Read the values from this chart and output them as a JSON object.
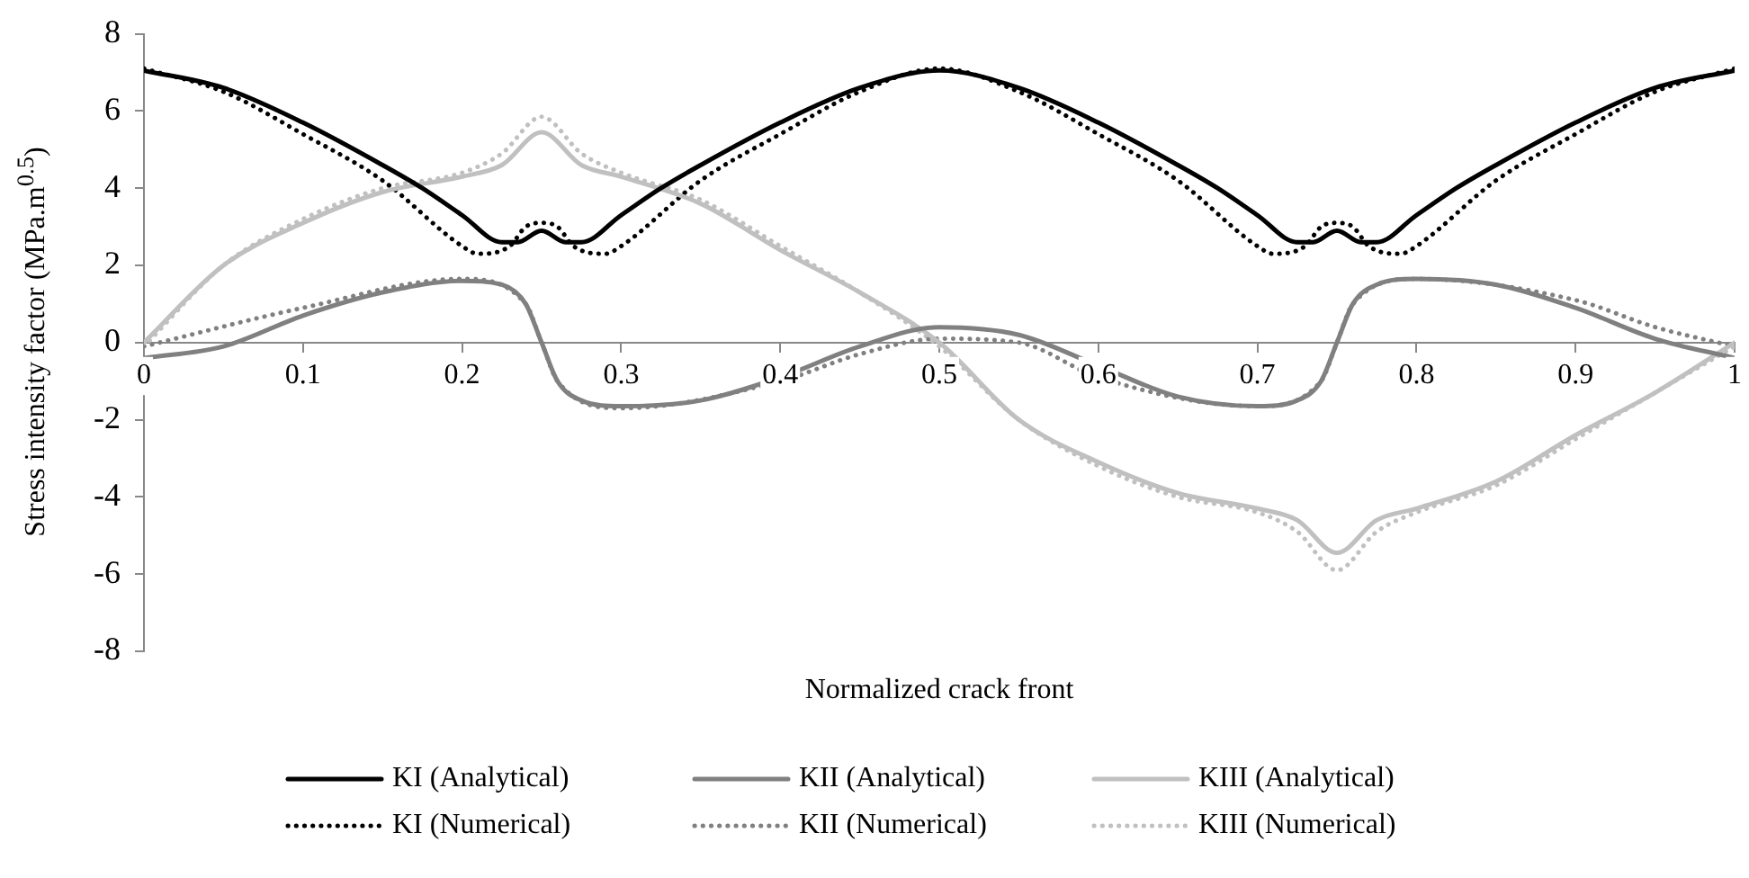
{
  "chart_data": {
    "type": "line",
    "xlabel": "Normalized crack front",
    "ylabel": "Stress intensity factor (MPa.m$^{0.5}$)",
    "xlim": [
      0,
      1
    ],
    "xticks": [
      0,
      0.1,
      0.2,
      0.3,
      0.4,
      0.5,
      0.6,
      0.7,
      0.8,
      0.9,
      1
    ],
    "ylim": [
      -8,
      8
    ],
    "yticks": [
      -8,
      -6,
      -4,
      -2,
      0,
      2,
      4,
      6,
      8
    ],
    "grid": false,
    "legend": "bottom",
    "marker": "none",
    "series": [
      {
        "name": "KI (Analytical)",
        "color": "#000000",
        "line_style": "solid",
        "x": [
          0,
          0.05,
          0.1,
          0.15,
          0.175,
          0.2,
          0.225,
          0.235,
          0.25,
          0.265,
          0.275,
          0.3,
          0.325,
          0.35,
          0.4,
          0.45,
          0.5,
          0.55,
          0.6,
          0.65,
          0.675,
          0.7,
          0.725,
          0.735,
          0.75,
          0.765,
          0.775,
          0.8,
          0.825,
          0.85,
          0.9,
          0.95,
          1
        ],
        "values": [
          7.05,
          6.6,
          5.7,
          4.6,
          4.0,
          3.3,
          2.6,
          2.6,
          2.9,
          2.6,
          2.6,
          3.3,
          4.0,
          4.6,
          5.7,
          6.6,
          7.05,
          6.6,
          5.7,
          4.6,
          4.0,
          3.3,
          2.6,
          2.6,
          2.9,
          2.6,
          2.6,
          3.3,
          4.0,
          4.6,
          5.7,
          6.6,
          7.05
        ]
      },
      {
        "name": "KII (Analytical)",
        "color": "#808080",
        "line_style": "solid",
        "x": [
          0,
          0.05,
          0.1,
          0.15,
          0.2,
          0.225,
          0.24,
          0.25,
          0.26,
          0.275,
          0.3,
          0.35,
          0.4,
          0.45,
          0.5,
          0.55,
          0.6,
          0.65,
          0.7,
          0.725,
          0.74,
          0.75,
          0.76,
          0.775,
          0.8,
          0.85,
          0.9,
          0.95,
          1
        ],
        "values": [
          -0.4,
          -0.1,
          0.7,
          1.3,
          1.6,
          1.5,
          1.0,
          0.0,
          -1.0,
          -1.5,
          -1.65,
          -1.5,
          -0.9,
          -0.1,
          0.4,
          0.2,
          -0.6,
          -1.4,
          -1.65,
          -1.5,
          -1.0,
          0.0,
          1.0,
          1.5,
          1.65,
          1.5,
          0.9,
          0.1,
          -0.4
        ]
      },
      {
        "name": "KIII (Analytical)",
        "color": "#c0c0c0",
        "line_style": "solid",
        "x": [
          0,
          0.05,
          0.1,
          0.15,
          0.2,
          0.225,
          0.25,
          0.275,
          0.3,
          0.35,
          0.4,
          0.45,
          0.5,
          0.55,
          0.6,
          0.65,
          0.7,
          0.725,
          0.75,
          0.775,
          0.8,
          0.85,
          0.9,
          0.95,
          1
        ],
        "values": [
          0,
          2.0,
          3.1,
          3.9,
          4.3,
          4.6,
          5.45,
          4.6,
          4.3,
          3.6,
          2.4,
          1.3,
          0,
          -2.0,
          -3.1,
          -3.9,
          -4.3,
          -4.6,
          -5.45,
          -4.6,
          -4.3,
          -3.6,
          -2.4,
          -1.3,
          0
        ]
      },
      {
        "name": "KI (Numerical)",
        "color": "#000000",
        "line_style": "dotted",
        "x": [
          0,
          0.05,
          0.1,
          0.15,
          0.2,
          0.21,
          0.23,
          0.24,
          0.25,
          0.26,
          0.27,
          0.29,
          0.3,
          0.35,
          0.4,
          0.45,
          0.5,
          0.55,
          0.6,
          0.65,
          0.7,
          0.71,
          0.73,
          0.74,
          0.75,
          0.76,
          0.77,
          0.79,
          0.8,
          0.85,
          0.9,
          0.95,
          1
        ],
        "values": [
          7.1,
          6.5,
          5.4,
          4.2,
          2.5,
          2.3,
          2.5,
          3.0,
          3.1,
          3.0,
          2.5,
          2.3,
          2.5,
          4.2,
          5.4,
          6.5,
          7.1,
          6.5,
          5.4,
          4.2,
          2.5,
          2.3,
          2.5,
          3.0,
          3.1,
          3.0,
          2.5,
          2.3,
          2.5,
          4.2,
          5.4,
          6.5,
          7.1
        ]
      },
      {
        "name": "KII (Numerical)",
        "color": "#808080",
        "line_style": "dotted",
        "x": [
          0,
          0.1,
          0.2,
          0.24,
          0.25,
          0.26,
          0.3,
          0.4,
          0.45,
          0.5,
          0.55,
          0.6,
          0.7,
          0.74,
          0.75,
          0.76,
          0.8,
          0.9,
          0.95,
          1
        ],
        "values": [
          -0.1,
          0.9,
          1.65,
          1.0,
          0,
          -1.0,
          -1.7,
          -1.0,
          -0.3,
          0.1,
          0.0,
          -0.9,
          -1.65,
          -1.0,
          0,
          1.0,
          1.65,
          1.1,
          0.4,
          -0.1
        ]
      },
      {
        "name": "KIII (Numerical)",
        "color": "#c0c0c0",
        "line_style": "dotted",
        "x": [
          0,
          0.05,
          0.1,
          0.15,
          0.2,
          0.225,
          0.25,
          0.275,
          0.3,
          0.35,
          0.4,
          0.45,
          0.5,
          0.55,
          0.6,
          0.65,
          0.7,
          0.725,
          0.75,
          0.775,
          0.8,
          0.85,
          0.9,
          0.95,
          1
        ],
        "values": [
          -0.1,
          2.0,
          3.2,
          4.0,
          4.4,
          4.9,
          5.85,
          4.9,
          4.4,
          3.7,
          2.5,
          1.3,
          -0.1,
          -2.0,
          -3.2,
          -4.0,
          -4.4,
          -4.9,
          -5.9,
          -4.9,
          -4.4,
          -3.7,
          -2.5,
          -1.3,
          -0.1
        ]
      }
    ]
  }
}
